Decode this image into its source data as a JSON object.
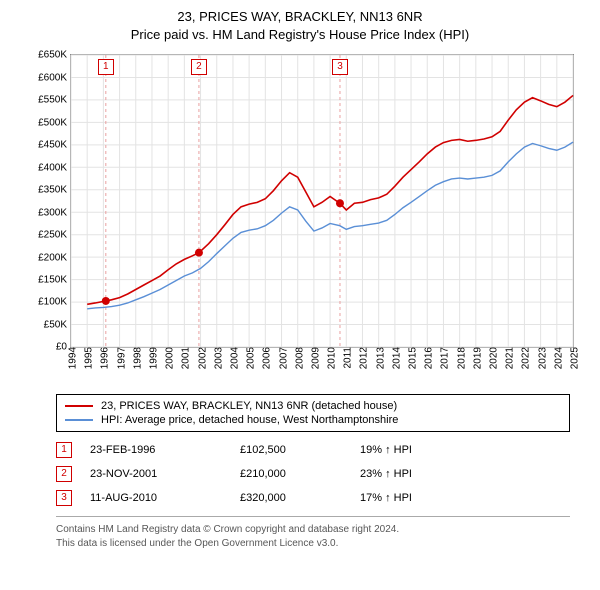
{
  "title_line1": "23, PRICES WAY, BRACKLEY, NN13 6NR",
  "title_line2": "Price paid vs. HM Land Registry's House Price Index (HPI)",
  "chart": {
    "type": "line",
    "background_color": "#ffffff",
    "grid_color": "#e3e3e3",
    "axis_color": "#888888",
    "x": {
      "min": 1994,
      "max": 2025,
      "tick_step": 1,
      "labels": [
        "1994",
        "1995",
        "1996",
        "1997",
        "1998",
        "1999",
        "2000",
        "2001",
        "2002",
        "2003",
        "2004",
        "2005",
        "2006",
        "2007",
        "2008",
        "2009",
        "2010",
        "2011",
        "2012",
        "2013",
        "2014",
        "2015",
        "2016",
        "2017",
        "2018",
        "2019",
        "2020",
        "2021",
        "2022",
        "2023",
        "2024",
        "2025"
      ]
    },
    "y": {
      "min": 0,
      "max": 650000,
      "tick_step": 50000,
      "labels": [
        "£0",
        "£50K",
        "£100K",
        "£150K",
        "£200K",
        "£250K",
        "£300K",
        "£350K",
        "£400K",
        "£450K",
        "£500K",
        "£550K",
        "£600K",
        "£650K"
      ]
    },
    "series": [
      {
        "name": "23, PRICES WAY, BRACKLEY, NN13 6NR (detached house)",
        "color": "#d00000",
        "line_width": 1.6,
        "points": [
          [
            1995.0,
            95000
          ],
          [
            1995.5,
            98000
          ],
          [
            1996.15,
            102500
          ],
          [
            1996.5,
            105000
          ],
          [
            1997.0,
            110000
          ],
          [
            1997.5,
            118000
          ],
          [
            1998.0,
            128000
          ],
          [
            1998.5,
            138000
          ],
          [
            1999.0,
            148000
          ],
          [
            1999.5,
            158000
          ],
          [
            2000.0,
            172000
          ],
          [
            2000.5,
            185000
          ],
          [
            2001.0,
            195000
          ],
          [
            2001.5,
            203000
          ],
          [
            2001.9,
            210000
          ],
          [
            2002.5,
            230000
          ],
          [
            2003.0,
            250000
          ],
          [
            2003.5,
            272000
          ],
          [
            2004.0,
            295000
          ],
          [
            2004.5,
            312000
          ],
          [
            2005.0,
            318000
          ],
          [
            2005.5,
            322000
          ],
          [
            2006.0,
            330000
          ],
          [
            2006.5,
            348000
          ],
          [
            2007.0,
            370000
          ],
          [
            2007.5,
            388000
          ],
          [
            2008.0,
            378000
          ],
          [
            2008.5,
            345000
          ],
          [
            2009.0,
            312000
          ],
          [
            2009.5,
            322000
          ],
          [
            2010.0,
            335000
          ],
          [
            2010.6,
            320000
          ],
          [
            2011.0,
            305000
          ],
          [
            2011.5,
            320000
          ],
          [
            2012.0,
            322000
          ],
          [
            2012.5,
            328000
          ],
          [
            2013.0,
            332000
          ],
          [
            2013.5,
            340000
          ],
          [
            2014.0,
            358000
          ],
          [
            2014.5,
            378000
          ],
          [
            2015.0,
            395000
          ],
          [
            2015.5,
            412000
          ],
          [
            2016.0,
            430000
          ],
          [
            2016.5,
            445000
          ],
          [
            2017.0,
            455000
          ],
          [
            2017.5,
            460000
          ],
          [
            2018.0,
            462000
          ],
          [
            2018.5,
            458000
          ],
          [
            2019.0,
            460000
          ],
          [
            2019.5,
            463000
          ],
          [
            2020.0,
            468000
          ],
          [
            2020.5,
            480000
          ],
          [
            2021.0,
            505000
          ],
          [
            2021.5,
            528000
          ],
          [
            2022.0,
            545000
          ],
          [
            2022.5,
            555000
          ],
          [
            2023.0,
            548000
          ],
          [
            2023.5,
            540000
          ],
          [
            2024.0,
            535000
          ],
          [
            2024.5,
            545000
          ],
          [
            2025.0,
            560000
          ]
        ]
      },
      {
        "name": "HPI: Average price, detached house, West Northamptonshire",
        "color": "#5a8fd6",
        "line_width": 1.4,
        "points": [
          [
            1995.0,
            85000
          ],
          [
            1995.5,
            87000
          ],
          [
            1996.0,
            88000
          ],
          [
            1996.5,
            90000
          ],
          [
            1997.0,
            93000
          ],
          [
            1997.5,
            98000
          ],
          [
            1998.0,
            105000
          ],
          [
            1998.5,
            112000
          ],
          [
            1999.0,
            120000
          ],
          [
            1999.5,
            128000
          ],
          [
            2000.0,
            138000
          ],
          [
            2000.5,
            148000
          ],
          [
            2001.0,
            158000
          ],
          [
            2001.5,
            165000
          ],
          [
            2002.0,
            175000
          ],
          [
            2002.5,
            190000
          ],
          [
            2003.0,
            208000
          ],
          [
            2003.5,
            225000
          ],
          [
            2004.0,
            242000
          ],
          [
            2004.5,
            255000
          ],
          [
            2005.0,
            260000
          ],
          [
            2005.5,
            263000
          ],
          [
            2006.0,
            270000
          ],
          [
            2006.5,
            282000
          ],
          [
            2007.0,
            298000
          ],
          [
            2007.5,
            312000
          ],
          [
            2008.0,
            305000
          ],
          [
            2008.5,
            280000
          ],
          [
            2009.0,
            258000
          ],
          [
            2009.5,
            265000
          ],
          [
            2010.0,
            275000
          ],
          [
            2010.6,
            270000
          ],
          [
            2011.0,
            262000
          ],
          [
            2011.5,
            268000
          ],
          [
            2012.0,
            270000
          ],
          [
            2012.5,
            273000
          ],
          [
            2013.0,
            276000
          ],
          [
            2013.5,
            282000
          ],
          [
            2014.0,
            295000
          ],
          [
            2014.5,
            310000
          ],
          [
            2015.0,
            322000
          ],
          [
            2015.5,
            335000
          ],
          [
            2016.0,
            348000
          ],
          [
            2016.5,
            360000
          ],
          [
            2017.0,
            368000
          ],
          [
            2017.5,
            374000
          ],
          [
            2018.0,
            376000
          ],
          [
            2018.5,
            374000
          ],
          [
            2019.0,
            376000
          ],
          [
            2019.5,
            378000
          ],
          [
            2020.0,
            382000
          ],
          [
            2020.5,
            392000
          ],
          [
            2021.0,
            412000
          ],
          [
            2021.5,
            430000
          ],
          [
            2022.0,
            445000
          ],
          [
            2022.5,
            453000
          ],
          [
            2023.0,
            448000
          ],
          [
            2023.5,
            442000
          ],
          [
            2024.0,
            438000
          ],
          [
            2024.5,
            445000
          ],
          [
            2025.0,
            456000
          ]
        ]
      }
    ],
    "sale_markers": [
      {
        "n": "1",
        "x": 1996.15,
        "y": 102500,
        "vline_color": "#e9a0a0"
      },
      {
        "n": "2",
        "x": 2001.9,
        "y": 210000,
        "vline_color": "#e9a0a0"
      },
      {
        "n": "3",
        "x": 2010.61,
        "y": 320000,
        "vline_color": "#e9a0a0"
      }
    ],
    "marker_dot_color": "#d00000",
    "marker_dot_radius": 4,
    "annotation_box_border": "#d00000",
    "annotation_top_offset": -2
  },
  "legend": [
    {
      "color": "#d00000",
      "label": "23, PRICES WAY, BRACKLEY, NN13 6NR (detached house)"
    },
    {
      "color": "#5a8fd6",
      "label": "HPI: Average price, detached house, West Northamptonshire"
    }
  ],
  "sales": [
    {
      "n": "1",
      "date": "23-FEB-1996",
      "price": "£102,500",
      "delta": "19% ↑ HPI"
    },
    {
      "n": "2",
      "date": "23-NOV-2001",
      "price": "£210,000",
      "delta": "23% ↑ HPI"
    },
    {
      "n": "3",
      "date": "11-AUG-2010",
      "price": "£320,000",
      "delta": "17% ↑ HPI"
    }
  ],
  "sale_marker_border": "#d00000",
  "footer_line1": "Contains HM Land Registry data © Crown copyright and database right 2024.",
  "footer_line2": "This data is licensed under the Open Government Licence v3.0."
}
